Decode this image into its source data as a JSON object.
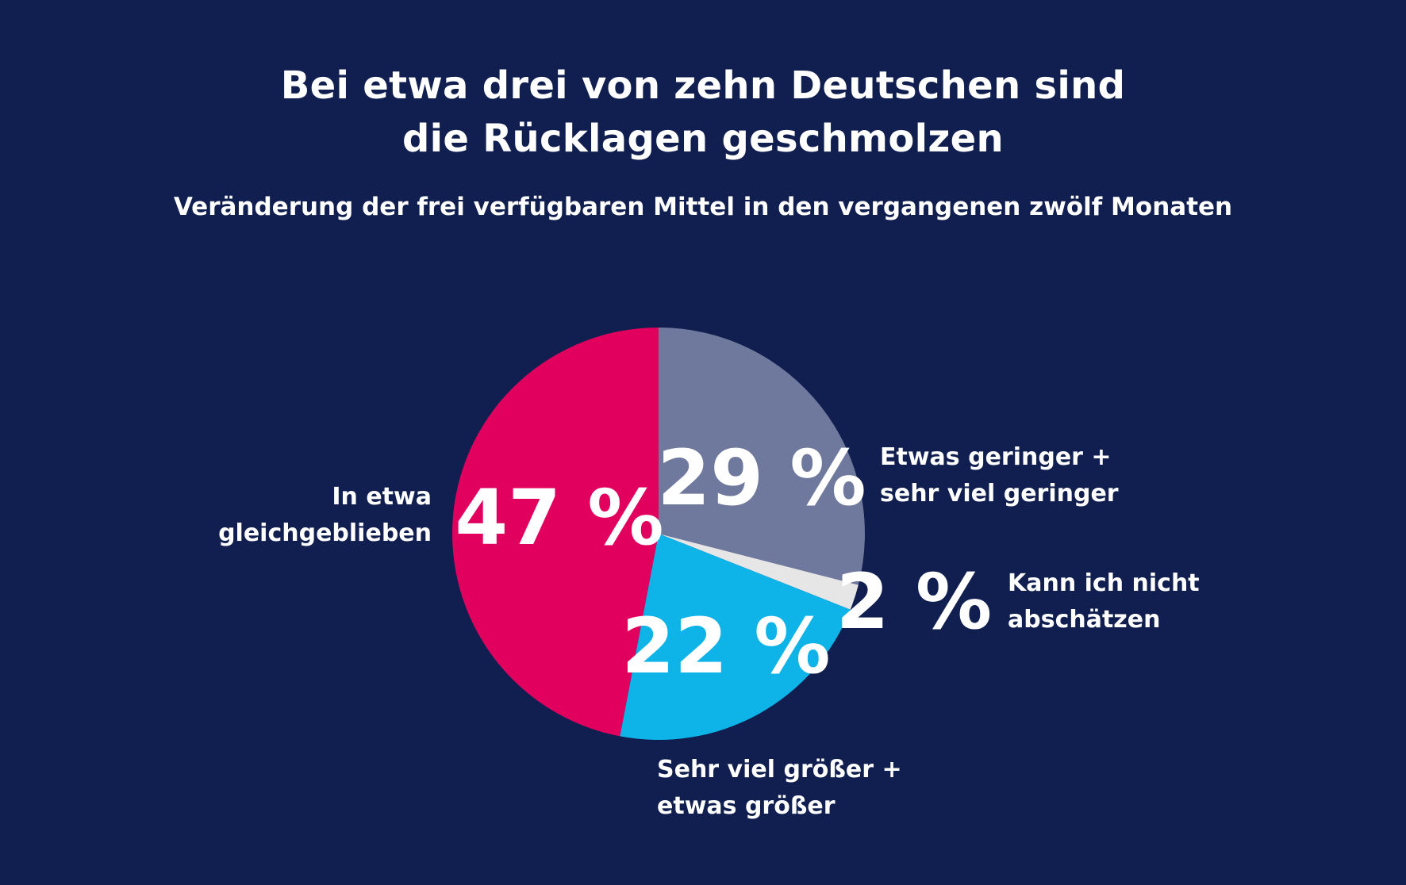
{
  "colors": {
    "background": "#101f4f",
    "text": "#ffffff"
  },
  "title": {
    "line1": "Bei etwa drei von zehn Deutschen sind",
    "line2": "die Rücklagen geschmolzen"
  },
  "subtitle": "Veränderung der frei verfügbaren Mittel in den vergangenen zwölf Monaten",
  "chart_data": {
    "type": "pie",
    "title": "Bei etwa drei von zehn Deutschen sind die Rücklagen geschmolzen",
    "subtitle": "Veränderung der frei verfügbaren Mittel in den vergangenen zwölf Monaten",
    "start_angle_deg": 0,
    "direction": "clockwise",
    "slices": [
      {
        "label_lines": [
          "Etwas geringer +",
          "sehr viel geringer"
        ],
        "value": 29,
        "display": "29 %",
        "color": "#6f789d"
      },
      {
        "label_lines": [
          "Kann ich nicht",
          "abschätzen"
        ],
        "value": 2,
        "display": "2 %",
        "color": "#e6e6e6"
      },
      {
        "label_lines": [
          "Sehr viel größer +",
          "etwas größer"
        ],
        "value": 22,
        "display": "22 %",
        "color": "#0eb3e8"
      },
      {
        "label_lines": [
          "In etwa",
          "gleichgeblieben"
        ],
        "value": 47,
        "display": "47 %",
        "color": "#e2005f"
      }
    ]
  }
}
